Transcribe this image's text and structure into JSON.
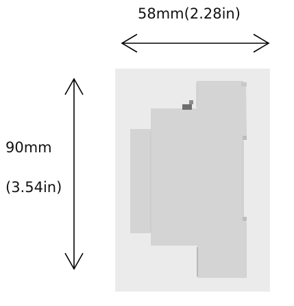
{
  "dimensions": {
    "width_label": "58mm(2.28in)",
    "height_label_mm": "90mm",
    "height_label_in": "(3.54in)"
  },
  "colors": {
    "background": "#ffffff",
    "product_backdrop": "#ebebeb",
    "device_body": "#d4d4d4",
    "device_shadow": "#b8b8b8",
    "arrow": "#000000",
    "text": "#111111"
  },
  "icons": {
    "width_arrow": "double-headed-horizontal-arrow",
    "height_arrow": "double-headed-vertical-arrow",
    "product": "din-rail-module-side-view"
  }
}
